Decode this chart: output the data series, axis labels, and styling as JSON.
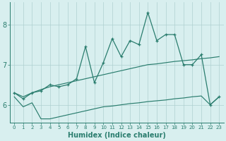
{
  "xlabel": "Humidex (Indice chaleur)",
  "x": [
    0,
    1,
    2,
    3,
    4,
    5,
    6,
    7,
    8,
    9,
    10,
    11,
    12,
    13,
    14,
    15,
    16,
    17,
    18,
    19,
    20,
    21,
    22,
    23
  ],
  "y_main": [
    6.3,
    6.15,
    6.3,
    6.35,
    6.5,
    6.45,
    6.5,
    6.65,
    7.45,
    6.55,
    7.05,
    7.65,
    7.2,
    7.6,
    7.5,
    8.3,
    7.6,
    7.75,
    7.75,
    7.0,
    7.0,
    7.25,
    6.0,
    6.2
  ],
  "y_upper": [
    6.3,
    6.2,
    6.3,
    6.38,
    6.45,
    6.5,
    6.55,
    6.6,
    6.65,
    6.7,
    6.75,
    6.8,
    6.85,
    6.9,
    6.95,
    7.0,
    7.02,
    7.05,
    7.08,
    7.1,
    7.12,
    7.15,
    7.17,
    7.2
  ],
  "y_lower": [
    6.2,
    5.95,
    6.05,
    5.65,
    5.65,
    5.7,
    5.75,
    5.8,
    5.85,
    5.9,
    5.95,
    5.97,
    6.0,
    6.03,
    6.05,
    6.08,
    6.1,
    6.12,
    6.15,
    6.17,
    6.2,
    6.22,
    6.0,
    6.2
  ],
  "line_color": "#2a7d6e",
  "bg_color": "#d8efef",
  "grid_color": "#afd0d0",
  "ylim_min": 5.55,
  "ylim_max": 8.55,
  "yticks": [
    6,
    7,
    8
  ],
  "ytick_fontsize": 7,
  "xtick_fontsize": 5,
  "xlabel_fontsize": 7
}
